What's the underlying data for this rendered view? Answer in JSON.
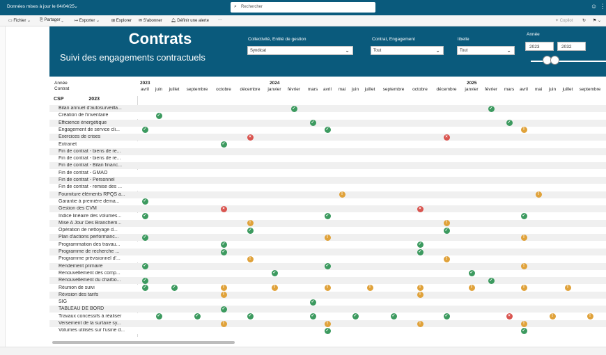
{
  "topbar": {
    "updated_label": "Données mises à jour le 04/04/25",
    "search_placeholder": "Rechercher"
  },
  "toolbar": {
    "file": "Fichier",
    "share": "Partager",
    "export": "Exporter",
    "explore": "Explorer",
    "subscribe": "S'abonner",
    "alert": "Définir une alerte",
    "more": "···",
    "copilot": "Copilot"
  },
  "header": {
    "title": "Contrats",
    "subtitle": "Suivi des engagements contractuels"
  },
  "filters": {
    "collectivite": {
      "label": "Collectivité, Entité de gestion",
      "value": "Syndicat"
    },
    "contrat": {
      "label": "Contrat, Engagement",
      "value": "Tout"
    },
    "libelle": {
      "label": "libelle",
      "value": "Tout"
    },
    "annee": {
      "label": "Année",
      "from": "2023",
      "to": "2032"
    }
  },
  "grid": {
    "row_header": {
      "line1": "Année",
      "line2": "Contrat"
    },
    "years": [
      "2023",
      "2024",
      "2025"
    ],
    "months": [
      "avril",
      "juin",
      "juillet",
      "septembre",
      "octobre",
      "décembre",
      "janvier",
      "février",
      "mars",
      "avril",
      "mai",
      "juin",
      "juillet",
      "septembre",
      "octobre",
      "décembre",
      "janvier",
      "février",
      "mars",
      "avril",
      "mai",
      "juin",
      "juillet",
      "septembre"
    ],
    "group_label": "CSP",
    "group_year": "2023",
    "rows": [
      {
        "label": "Bilan annuel d'autosurveilla...",
        "marks": [
          [
            7,
            "ok"
          ],
          [
            17,
            "ok"
          ]
        ]
      },
      {
        "label": "Création de l'inventaire",
        "marks": [
          [
            1,
            "ok"
          ]
        ]
      },
      {
        "label": "Efficience énergétique",
        "marks": [
          [
            8,
            "ok"
          ],
          [
            18,
            "ok"
          ]
        ]
      },
      {
        "label": "Engagement de service cli...",
        "marks": [
          [
            0,
            "ok"
          ],
          [
            9,
            "ok"
          ],
          [
            19,
            "warn"
          ]
        ]
      },
      {
        "label": "Exercices de crises",
        "marks": [
          [
            5,
            "err"
          ],
          [
            15,
            "err"
          ]
        ]
      },
      {
        "label": "Extranet",
        "marks": [
          [
            4,
            "ok"
          ]
        ]
      },
      {
        "label": "Fin de contrat - biens de re...",
        "marks": []
      },
      {
        "label": "Fin de contrat - biens de re...",
        "marks": []
      },
      {
        "label": "Fin de contrat - Bilan financ...",
        "marks": []
      },
      {
        "label": "Fin de contrat - GMAO",
        "marks": []
      },
      {
        "label": "Fin de contrat - Personnel",
        "marks": []
      },
      {
        "label": "Fin de contrat - remise des ...",
        "marks": []
      },
      {
        "label": "Fourniture éléments RPQS a...",
        "marks": [
          [
            10,
            "warn"
          ],
          [
            20,
            "warn"
          ]
        ]
      },
      {
        "label": "Garantie à première dema...",
        "marks": [
          [
            0,
            "ok"
          ]
        ]
      },
      {
        "label": "Gestion des CVM",
        "marks": [
          [
            4,
            "err"
          ],
          [
            14,
            "err"
          ]
        ]
      },
      {
        "label": "Indice linéaire des volumes...",
        "marks": [
          [
            0,
            "ok"
          ],
          [
            9,
            "ok"
          ],
          [
            19,
            "ok"
          ]
        ]
      },
      {
        "label": "Mise A Jour Des Branchem...",
        "marks": [
          [
            5,
            "warn"
          ],
          [
            15,
            "warn"
          ]
        ]
      },
      {
        "label": "Opération de nettoyage d...",
        "marks": [
          [
            5,
            "ok"
          ],
          [
            15,
            "ok"
          ]
        ]
      },
      {
        "label": "Plan d'actions performanc...",
        "marks": [
          [
            0,
            "ok"
          ],
          [
            9,
            "warn"
          ],
          [
            19,
            "warn"
          ]
        ]
      },
      {
        "label": "Programmation des travau...",
        "marks": [
          [
            4,
            "ok"
          ],
          [
            14,
            "ok"
          ]
        ]
      },
      {
        "label": "Programme de recherche ...",
        "marks": [
          [
            4,
            "ok"
          ],
          [
            14,
            "ok"
          ]
        ]
      },
      {
        "label": "Programme prévisionnel d'...",
        "marks": [
          [
            5,
            "warn"
          ],
          [
            15,
            "warn"
          ]
        ]
      },
      {
        "label": "Rendement primaire",
        "marks": [
          [
            0,
            "ok"
          ],
          [
            9,
            "ok"
          ],
          [
            19,
            "warn"
          ]
        ]
      },
      {
        "label": "Renouvellement des comp...",
        "marks": [
          [
            6,
            "ok"
          ],
          [
            16,
            "ok"
          ]
        ]
      },
      {
        "label": "Renouvellement du charbo...",
        "marks": [
          [
            0,
            "ok"
          ],
          [
            17,
            "ok"
          ]
        ]
      },
      {
        "label": "Réunion de suivi",
        "marks": [
          [
            0,
            "ok"
          ],
          [
            2,
            "ok"
          ],
          [
            4,
            "warn"
          ],
          [
            6,
            "warn"
          ],
          [
            9,
            "warn"
          ],
          [
            12,
            "warn"
          ],
          [
            14,
            "warn"
          ],
          [
            16,
            "warn"
          ],
          [
            19,
            "warn"
          ],
          [
            22,
            "warn"
          ]
        ]
      },
      {
        "label": "Révision des tarifs",
        "marks": [
          [
            4,
            "warn"
          ],
          [
            14,
            "warn"
          ]
        ]
      },
      {
        "label": "SIG",
        "marks": [
          [
            8,
            "ok"
          ]
        ]
      },
      {
        "label": "TABLEAU DE BORD",
        "marks": [
          [
            4,
            "ok"
          ]
        ]
      },
      {
        "label": "Travaux concessifs à réaliser",
        "marks": [
          [
            1,
            "ok"
          ],
          [
            3,
            "ok"
          ],
          [
            5,
            "ok"
          ],
          [
            8,
            "ok"
          ],
          [
            11,
            "ok"
          ],
          [
            13,
            "ok"
          ],
          [
            15,
            "ok"
          ],
          [
            18,
            "err"
          ],
          [
            21,
            "warn"
          ],
          [
            23,
            "warn"
          ]
        ]
      },
      {
        "label": "Versement de la surtaxe sy...",
        "marks": [
          [
            4,
            "warn"
          ],
          [
            9,
            "warn"
          ],
          [
            14,
            "warn"
          ],
          [
            19,
            "warn"
          ]
        ]
      },
      {
        "label": "Volumes utilisés sur l'usine d...",
        "marks": [
          [
            9,
            "ok"
          ],
          [
            19,
            "ok"
          ]
        ]
      }
    ]
  },
  "status_glyphs": {
    "ok": "✓",
    "warn": "!",
    "err": "×"
  },
  "colors": {
    "brand": "#0a5a7c",
    "ok": "#3c9a5f",
    "warn": "#e0a23a",
    "err": "#d9544f"
  }
}
